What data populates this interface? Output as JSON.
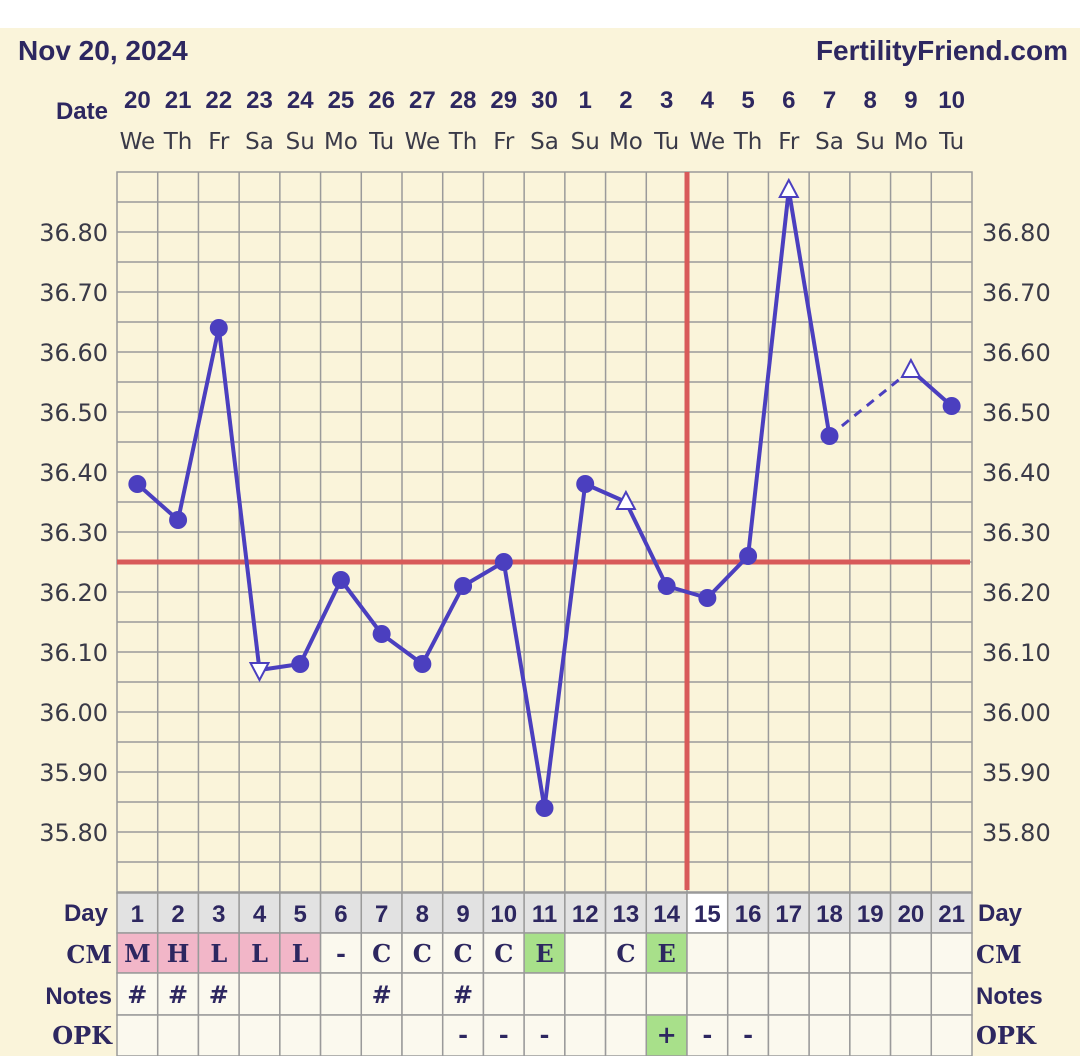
{
  "header": {
    "date": "Nov 20, 2024",
    "brand": "FertilityFriend.com"
  },
  "row_labels": {
    "date": "Date",
    "day": "Day",
    "cm": "CM",
    "notes": "Notes",
    "opk": "OPK"
  },
  "colors": {
    "background": "#faf4da",
    "grid": "#9a9a9a",
    "series": "#4b3fbf",
    "coverline": "#d85a5a",
    "cm_menses": "#f2b6c8",
    "cm_egg_white": "#a8e08a",
    "opk_positive": "#a8e08a"
  },
  "chart_data": {
    "type": "line",
    "ylim": [
      35.75,
      36.95
    ],
    "yticks": [
      "36.80",
      "36.70",
      "36.60",
      "36.50",
      "36.40",
      "36.30",
      "36.20",
      "36.10",
      "36.00",
      "35.90",
      "35.80"
    ],
    "coverline": 36.25,
    "ovulation_day": 15,
    "dates": [
      "20",
      "21",
      "22",
      "23",
      "24",
      "25",
      "26",
      "27",
      "28",
      "29",
      "30",
      "1",
      "2",
      "3",
      "4",
      "5",
      "6",
      "7",
      "8",
      "9",
      "10"
    ],
    "weekdays": [
      "We",
      "Th",
      "Fr",
      "Sa",
      "Su",
      "Mo",
      "Tu",
      "We",
      "Th",
      "Fr",
      "Sa",
      "Su",
      "Mo",
      "Tu",
      "We",
      "Th",
      "Fr",
      "Sa",
      "Su",
      "Mo",
      "Tu"
    ],
    "days": [
      "1",
      "2",
      "3",
      "4",
      "5",
      "6",
      "7",
      "8",
      "9",
      "10",
      "11",
      "12",
      "13",
      "14",
      "15",
      "16",
      "17",
      "18",
      "19",
      "20",
      "21"
    ],
    "temps": [
      36.38,
      36.32,
      36.64,
      36.07,
      36.08,
      36.22,
      36.13,
      36.08,
      36.21,
      36.25,
      35.84,
      36.38,
      36.35,
      36.21,
      36.19,
      36.26,
      36.87,
      36.46,
      null,
      36.57,
      36.51
    ],
    "markers": [
      "circle",
      "circle",
      "circle",
      "triangle-down",
      "circle",
      "circle",
      "circle",
      "circle",
      "circle",
      "circle",
      "circle",
      "circle",
      "triangle-up",
      "circle",
      "circle",
      "circle",
      "triangle-up",
      "circle",
      null,
      "triangle-up",
      "circle"
    ],
    "dashed_segments": [
      [
        18,
        20
      ]
    ],
    "cm": [
      "M",
      "H",
      "L",
      "L",
      "L",
      "-",
      "C",
      "C",
      "C",
      "C",
      "E",
      "",
      "C",
      "E",
      "",
      "",
      "",
      "",
      "",
      "",
      ""
    ],
    "notes": [
      "#",
      "#",
      "#",
      "",
      "",
      "",
      "#",
      "",
      "#",
      "",
      "",
      "",
      "",
      "",
      "",
      "",
      "",
      "",
      "",
      "",
      ""
    ],
    "opk": [
      "",
      "",
      "",
      "",
      "",
      "",
      "",
      "",
      "-",
      "-",
      "-",
      "",
      "",
      "+",
      "-",
      "-",
      "",
      "",
      "",
      "",
      ""
    ]
  }
}
